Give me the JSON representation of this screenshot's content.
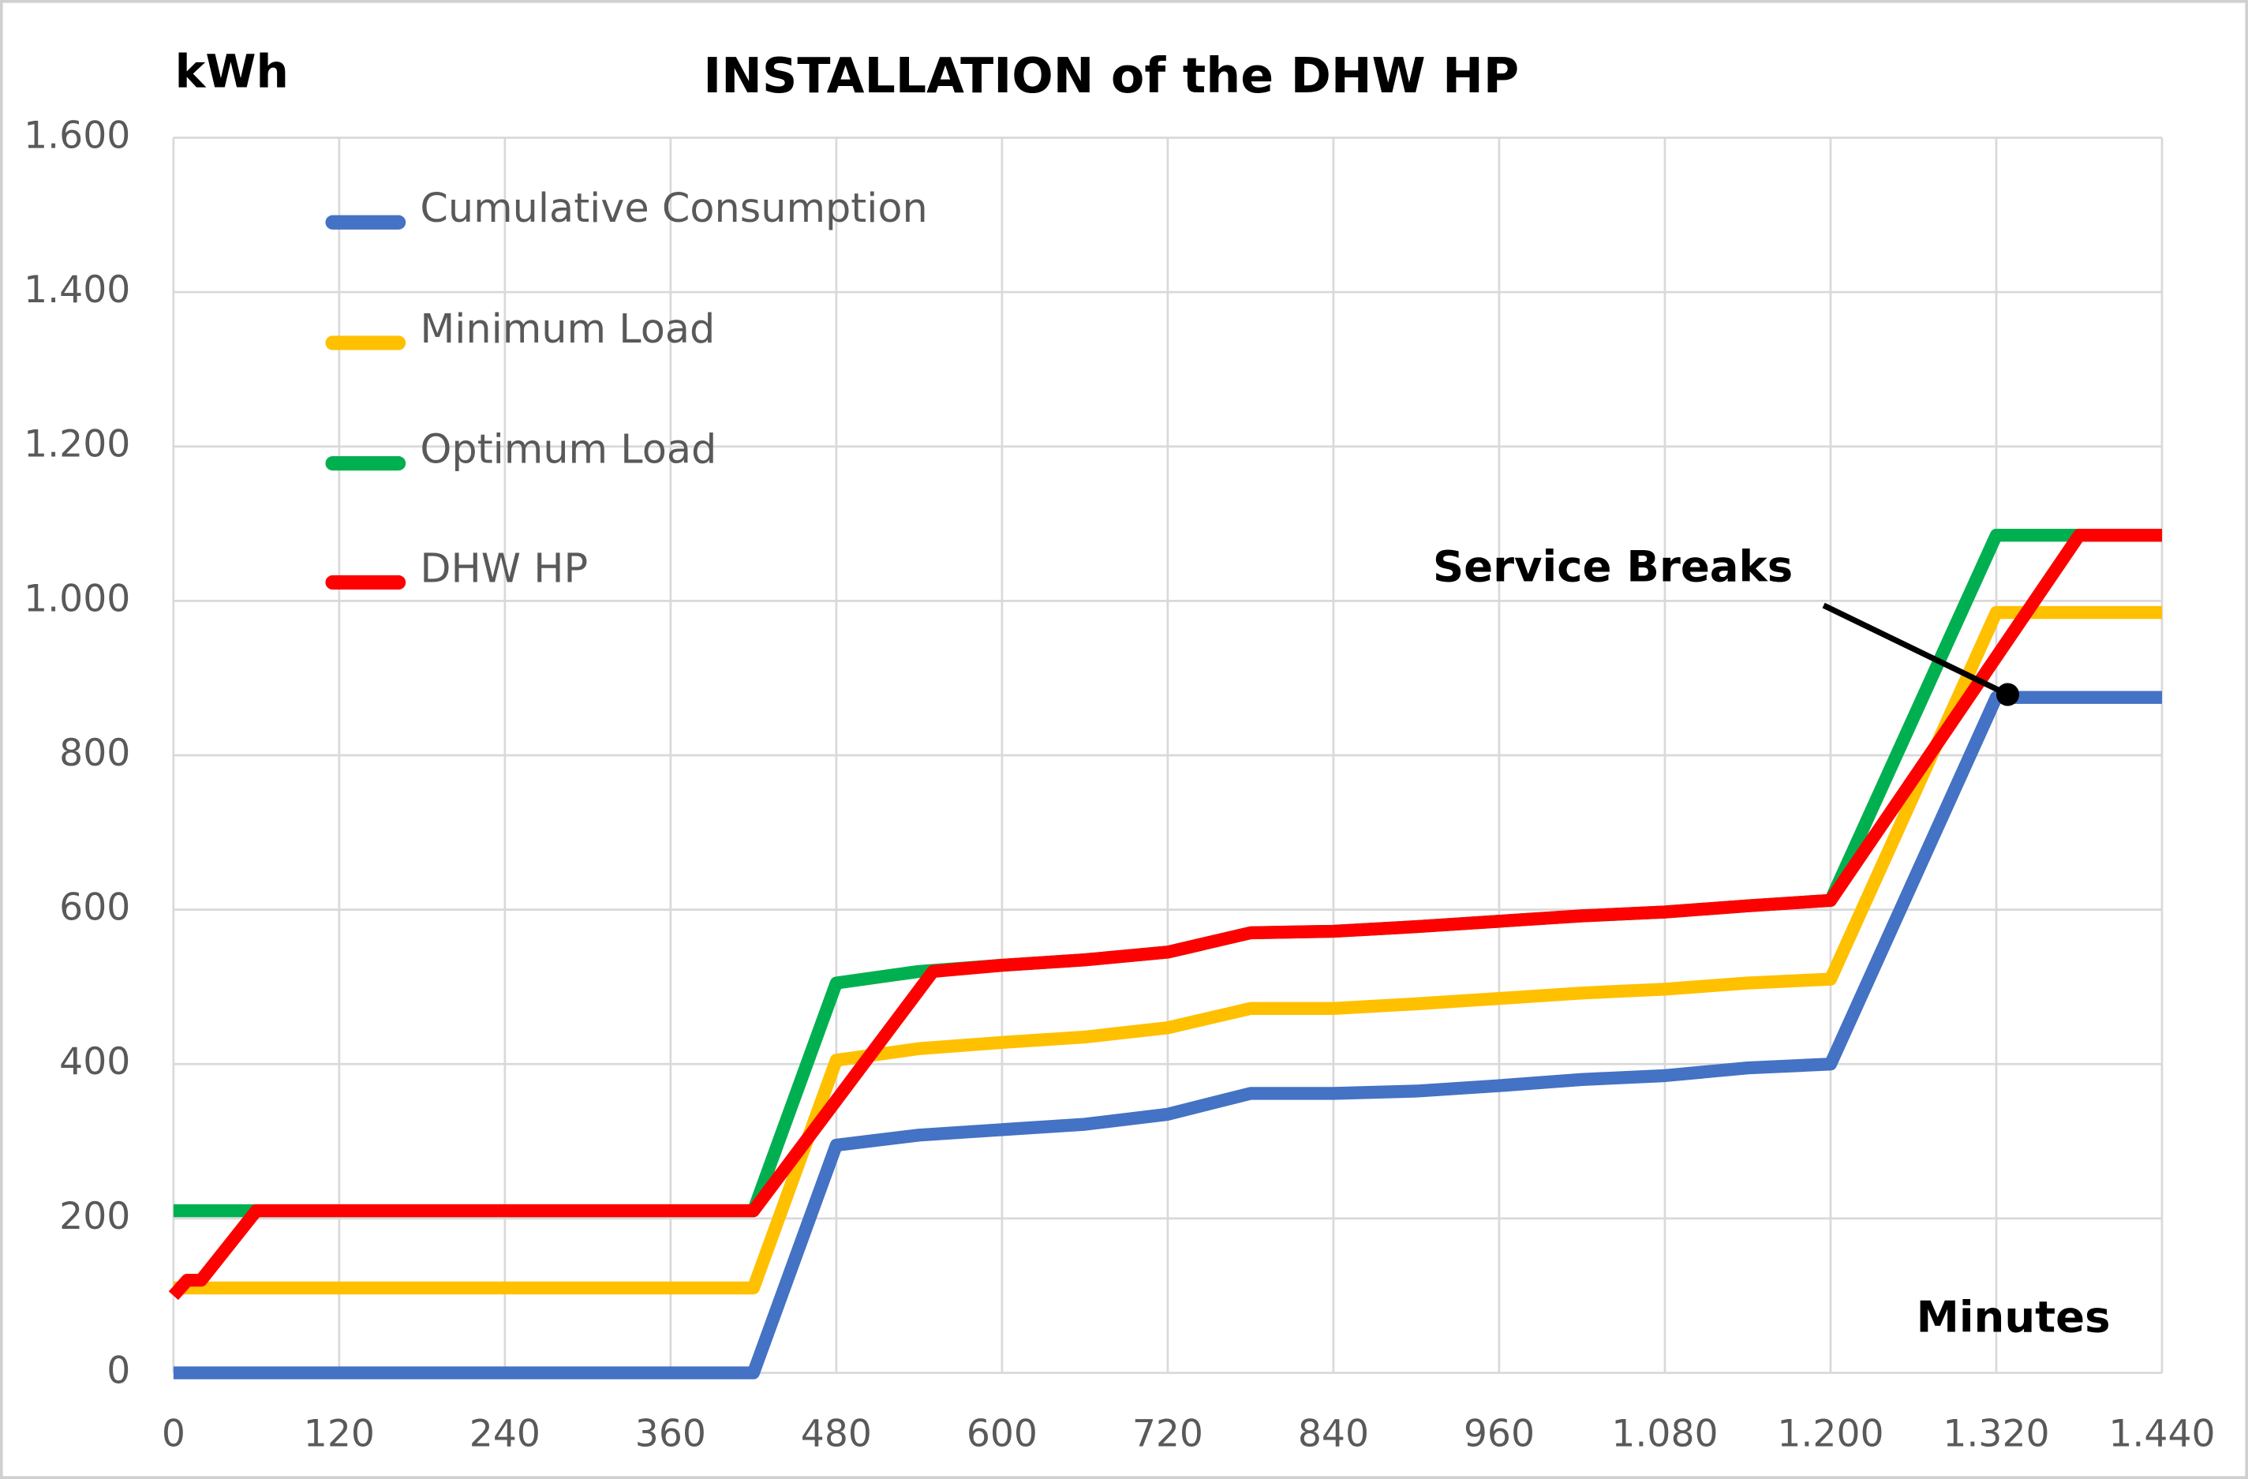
{
  "chart_data": {
    "type": "line",
    "title": "INSTALLATION of the DHW HP",
    "y_label": "kWh",
    "x_label": "Minutes",
    "annotation": "Service Breaks",
    "xlim": [
      0,
      1440
    ],
    "xticks": [
      0,
      120,
      240,
      360,
      480,
      600,
      720,
      840,
      960,
      {
        "value": 1080,
        "label": "1.080"
      },
      {
        "value": 1200,
        "label": "1.200"
      },
      {
        "value": 1320,
        "label": "1.320"
      },
      {
        "value": 1440,
        "label": "1.440"
      }
    ],
    "ylim": [
      0,
      1600
    ],
    "yticks": [
      0,
      200,
      400,
      600,
      800,
      {
        "value": 1000,
        "label": "1.000"
      },
      {
        "value": 1200,
        "label": "1.200"
      },
      {
        "value": 1400,
        "label": "1.400"
      },
      {
        "value": 1600,
        "label": "1.600"
      }
    ],
    "grid": true,
    "legend": "upper left",
    "series": [
      {
        "name": "Cumulative Consumption",
        "color": "#4472c4",
        "x": [
          0,
          420,
          480,
          540,
          600,
          660,
          720,
          780,
          840,
          900,
          960,
          1020,
          1080,
          1140,
          1200,
          1320,
          1440
        ],
        "values": [
          0,
          0,
          295,
          308,
          315,
          322,
          335,
          362,
          362,
          365,
          372,
          380,
          385,
          395,
          400,
          875,
          875
        ]
      },
      {
        "name": "Minimum Load",
        "color": "#ffc000",
        "x": [
          0,
          420,
          480,
          540,
          600,
          660,
          720,
          780,
          840,
          900,
          960,
          1020,
          1080,
          1140,
          1200,
          1320,
          1440
        ],
        "values": [
          110,
          110,
          405,
          420,
          428,
          435,
          447,
          472,
          472,
          478,
          485,
          492,
          497,
          505,
          510,
          985,
          985
        ]
      },
      {
        "name": "Optimum Load",
        "color": "#00b050",
        "x": [
          0,
          420,
          480,
          540,
          600,
          660,
          720,
          780,
          840,
          900,
          960,
          1020,
          1080,
          1140,
          1200,
          1320,
          1440
        ],
        "values": [
          210,
          210,
          505,
          520,
          528,
          535,
          545,
          570,
          572,
          578,
          585,
          592,
          597,
          605,
          612,
          1085,
          1085
        ]
      },
      {
        "name": "DHW HP",
        "color": "#ff0000",
        "x": [
          0,
          10,
          20,
          60,
          420,
          550,
          600,
          660,
          720,
          780,
          840,
          900,
          960,
          1020,
          1080,
          1140,
          1200,
          1380,
          1440
        ],
        "values": [
          100,
          120,
          120,
          210,
          210,
          520,
          528,
          535,
          545,
          570,
          572,
          578,
          585,
          592,
          597,
          605,
          612,
          1085,
          1085
        ]
      }
    ]
  }
}
